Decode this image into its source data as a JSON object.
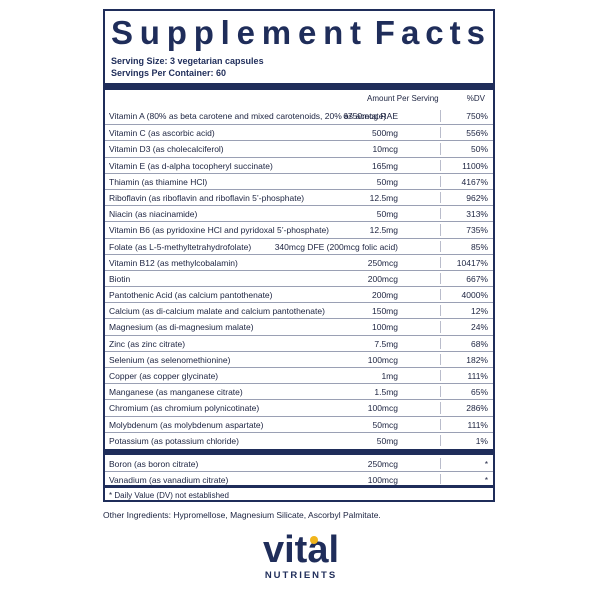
{
  "panel": {
    "title_word1": "Supplement",
    "title_word2": "Facts",
    "serving_size": "Serving Size: 3 vegetarian capsules",
    "servings_per_container": "Servings Per Container: 60",
    "col_amount": "Amount Per Serving",
    "col_dv": "%DV",
    "rows": [
      {
        "name": "Vitamin A (80% as beta carotene and mixed carotenoids, 20% as acetate)",
        "amount": "6750mcg RAE",
        "dv": "750%"
      },
      {
        "name": "Vitamin C (as ascorbic acid)",
        "amount": "500mg",
        "dv": "556%"
      },
      {
        "name": "Vitamin D3 (as cholecalciferol)",
        "amount": "10mcg",
        "dv": "50%"
      },
      {
        "name": "Vitamin E (as d-alpha tocopheryl succinate)",
        "amount": "165mg",
        "dv": "1100%"
      },
      {
        "name": "Thiamin (as thiamine HCl)",
        "amount": "50mg",
        "dv": "4167%"
      },
      {
        "name": "Riboflavin (as riboflavin and riboflavin 5’-phosphate)",
        "amount": "12.5mg",
        "dv": "962%"
      },
      {
        "name": "Niacin (as niacinamide)",
        "amount": "50mg",
        "dv": "313%"
      },
      {
        "name": "Vitamin B6 (as pyridoxine HCl and pyridoxal 5’-phosphate)",
        "amount": "12.5mg",
        "dv": "735%"
      },
      {
        "name": "Folate (as L-5-methyltetrahydrofolate)",
        "amount": "340mcg DFE (200mcg folic acid)",
        "dv": "85%"
      },
      {
        "name": "Vitamin B12 (as methylcobalamin)",
        "amount": "250mcg",
        "dv": "10417%"
      },
      {
        "name": "Biotin",
        "amount": "200mcg",
        "dv": "667%"
      },
      {
        "name": "Pantothenic Acid (as calcium pantothenate)",
        "amount": "200mg",
        "dv": "4000%"
      },
      {
        "name": "Calcium (as di-calcium malate and calcium pantothenate)",
        "amount": "150mg",
        "dv": "12%"
      },
      {
        "name": "Magnesium (as di-magnesium malate)",
        "amount": "100mg",
        "dv": "24%"
      },
      {
        "name": "Zinc (as zinc citrate)",
        "amount": "7.5mg",
        "dv": "68%"
      },
      {
        "name": "Selenium (as selenomethionine)",
        "amount": "100mcg",
        "dv": "182%"
      },
      {
        "name": "Copper (as copper glycinate)",
        "amount": "1mg",
        "dv": "111%"
      },
      {
        "name": "Manganese (as manganese citrate)",
        "amount": "1.5mg",
        "dv": "65%"
      },
      {
        "name": "Chromium (as chromium polynicotinate)",
        "amount": "100mcg",
        "dv": "286%"
      },
      {
        "name": "Molybdenum (as molybdenum aspartate)",
        "amount": "50mcg",
        "dv": "111%"
      },
      {
        "name": "Potassium (as potassium chloride)",
        "amount": "50mg",
        "dv": "1%"
      }
    ],
    "rows2": [
      {
        "name": "Boron (as boron citrate)",
        "amount": "250mcg",
        "dv": "*"
      },
      {
        "name": "Vanadium (as vanadium citrate)",
        "amount": "100mcg",
        "dv": "*"
      }
    ],
    "footnote": "* Daily Value (DV) not established"
  },
  "other_ingredients": "Other Ingredients: Hypromellose, Magnesium Silicate, Ascorbyl Palmitate.",
  "logo": {
    "word": "vital",
    "sub": "NUTRIENTS",
    "accent_color": "#f1b51c",
    "brand_color": "#1f2d5a"
  }
}
